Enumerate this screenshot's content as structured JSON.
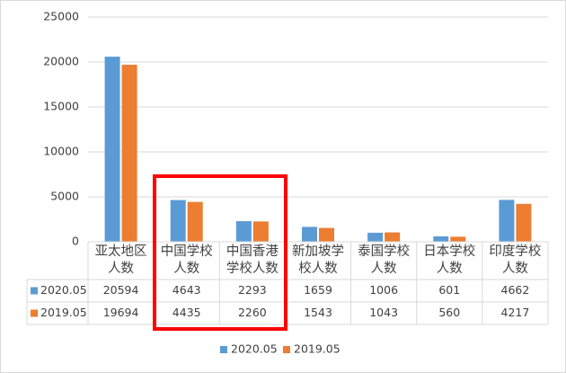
{
  "chart_data": {
    "type": "bar",
    "categories": [
      "亚太地区人数",
      "中国学校人数",
      "中国香港学校人数",
      "新加坡学校人数",
      "泰国学校人数",
      "日本学校人数",
      "印度学校人数"
    ],
    "series": [
      {
        "name": "2020.05",
        "color": "#5b9bd5",
        "values": [
          20594,
          4643,
          2293,
          1659,
          1006,
          601,
          4662
        ]
      },
      {
        "name": "2019.05",
        "color": "#ed7d31",
        "values": [
          19694,
          4435,
          2260,
          1543,
          1043,
          560,
          4217
        ]
      }
    ],
    "ylim": [
      0,
      25000
    ],
    "yticks": [
      0,
      5000,
      10000,
      15000,
      20000,
      25000
    ],
    "grid": true,
    "data_table": true,
    "legend": "bottom"
  }
}
